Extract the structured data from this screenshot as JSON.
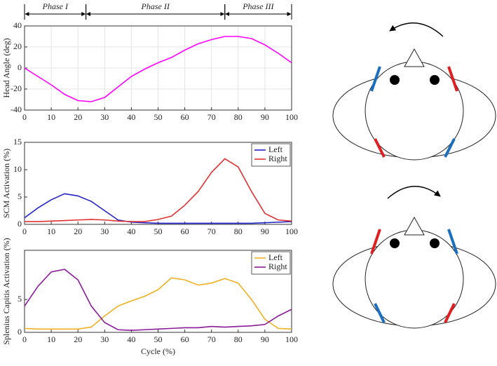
{
  "phases": [
    {
      "label": "Phase I",
      "start": 0,
      "end": 23
    },
    {
      "label": "Phase II",
      "start": 23,
      "end": 75
    },
    {
      "label": "Phase III",
      "start": 75,
      "end": 100
    }
  ],
  "chart_data": [
    {
      "type": "line",
      "ylabel": "Head Angle (deg)",
      "x": [
        0,
        5,
        10,
        15,
        20,
        25,
        30,
        35,
        40,
        45,
        50,
        55,
        60,
        65,
        70,
        75,
        80,
        85,
        90,
        95,
        100
      ],
      "series": [
        {
          "name": null,
          "color": "#ff00ff",
          "values": [
            0,
            -8,
            -16,
            -25,
            -31,
            -32,
            -28,
            -18,
            -8,
            -1,
            5,
            10,
            17,
            23,
            27,
            30,
            30,
            28,
            22,
            14,
            5
          ]
        }
      ],
      "xlim": [
        0,
        100
      ],
      "xticks": [
        0,
        10,
        20,
        30,
        40,
        50,
        60,
        70,
        80,
        90,
        100
      ],
      "ylim": [
        -40,
        40
      ],
      "yticks": [
        -40,
        -20,
        0,
        20,
        40
      ],
      "grid": true
    },
    {
      "type": "line",
      "ylabel": "SCM Activation (%)",
      "x": [
        0,
        5,
        10,
        15,
        20,
        25,
        30,
        35,
        40,
        45,
        50,
        55,
        60,
        65,
        70,
        75,
        80,
        85,
        90,
        95,
        100
      ],
      "series": [
        {
          "name": "Left",
          "color": "#2424c8",
          "values": [
            1.2,
            3,
            4.5,
            5.6,
            5.2,
            4.2,
            2.5,
            0.8,
            0.4,
            0.3,
            0.2,
            0.2,
            0.2,
            0.2,
            0.2,
            0.2,
            0.2,
            0.2,
            0.3,
            0.4,
            0.5
          ]
        },
        {
          "name": "Right",
          "color": "#e03232",
          "values": [
            0.5,
            0.5,
            0.6,
            0.7,
            0.8,
            0.9,
            0.8,
            0.6,
            0.5,
            0.5,
            0.9,
            1.5,
            3.5,
            6,
            9.5,
            12,
            10.5,
            6,
            2,
            0.8,
            0.6
          ]
        }
      ],
      "xlim": [
        0,
        100
      ],
      "xticks": [
        0,
        10,
        20,
        30,
        40,
        50,
        60,
        70,
        80,
        90,
        100
      ],
      "ylim": [
        0,
        15
      ],
      "yticks": [
        0,
        5,
        10,
        15
      ],
      "grid": false,
      "legend": "upper right"
    },
    {
      "type": "line",
      "ylabel": "Splenius Capitis Activation (%)",
      "xlabel": "Cycle (%)",
      "x": [
        0,
        5,
        10,
        15,
        20,
        25,
        30,
        35,
        40,
        45,
        50,
        55,
        60,
        65,
        70,
        75,
        80,
        85,
        90,
        95,
        100
      ],
      "series": [
        {
          "name": "Left",
          "color": "#f0b020",
          "values": [
            0.6,
            0.5,
            0.5,
            0.5,
            0.5,
            0.8,
            2.5,
            4,
            4.8,
            5.5,
            6.5,
            8.3,
            8,
            7.2,
            7.5,
            8.2,
            7.5,
            5,
            2,
            0.6,
            0.5
          ]
        },
        {
          "name": "Right",
          "color": "#8a1a9a",
          "values": [
            4,
            7,
            9.2,
            9.6,
            8,
            4,
            1.5,
            0.4,
            0.3,
            0.4,
            0.5,
            0.6,
            0.7,
            0.7,
            0.9,
            0.8,
            0.9,
            1,
            1.2,
            2.5,
            3.5
          ]
        }
      ],
      "xlim": [
        0,
        100
      ],
      "xticks": [
        0,
        10,
        20,
        30,
        40,
        50,
        60,
        70,
        80,
        90,
        100
      ],
      "ylim": [
        0,
        12.5
      ],
      "yticks": [
        0,
        5
      ],
      "grid": false,
      "legend": "upper right"
    }
  ]
}
